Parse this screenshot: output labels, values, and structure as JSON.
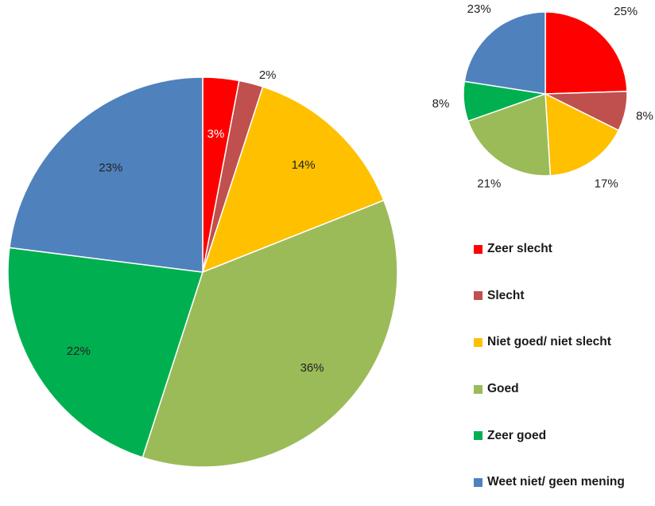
{
  "chart_data": [
    {
      "type": "pie",
      "categories": [
        "Zeer slecht",
        "Slecht",
        "Niet goed/ niet slecht",
        "Goed",
        "Zeer goed",
        "Weet niet/ geen mening"
      ],
      "values": [
        3,
        2,
        14,
        36,
        22,
        23
      ],
      "labels": [
        "3%",
        "2%",
        "14%",
        "36%",
        "22%",
        "23%"
      ],
      "colors": [
        "#ff0000",
        "#c0504d",
        "#ffc000",
        "#9bbb59",
        "#00b050",
        "#4f81bd"
      ]
    },
    {
      "type": "pie",
      "categories": [
        "Zeer slecht",
        "Slecht",
        "Niet goed/ niet slecht",
        "Goed",
        "Zeer goed",
        "Weet niet/ geen mening"
      ],
      "values": [
        25,
        8,
        17,
        21,
        8,
        23
      ],
      "labels": [
        "25%",
        "8%",
        "17%",
        "21%",
        "8%",
        "23%"
      ],
      "colors": [
        "#ff0000",
        "#c0504d",
        "#ffc000",
        "#9bbb59",
        "#00b050",
        "#4f81bd"
      ]
    }
  ],
  "legend": {
    "placement": "right",
    "items": [
      {
        "label": "Zeer slecht",
        "color": "#ff0000"
      },
      {
        "label": "Slecht",
        "color": "#c0504d"
      },
      {
        "label": "Niet goed/ niet slecht",
        "color": "#ffc000"
      },
      {
        "label": "Goed",
        "color": "#9bbb59"
      },
      {
        "label": "Zeer goed",
        "color": "#00b050"
      },
      {
        "label": "Weet niet/ geen mening",
        "color": "#4f81bd"
      }
    ]
  }
}
